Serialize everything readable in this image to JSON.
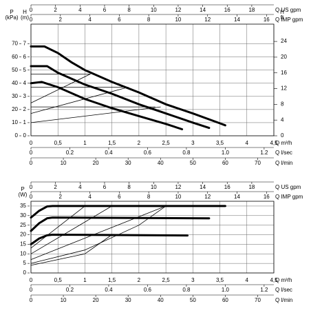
{
  "chart_data": [
    {
      "type": "line",
      "xlim": [
        0,
        4.5
      ],
      "x_label": "Q m³/h",
      "xticks": [
        0,
        {
          "value": 0.5,
          "label": "0,5"
        },
        1,
        {
          "value": 1.5,
          "label": "1,5"
        },
        2,
        {
          "value": 2.5,
          "label": "2,5"
        },
        3,
        {
          "value": 3.5,
          "label": "3,5"
        },
        4,
        {
          "value": 4.5,
          "label": "4,5"
        }
      ],
      "extra_x": [
        {
          "side": "top",
          "label": "Q US gpm",
          "lim": [
            0,
            19.8
          ],
          "ticks": [
            0,
            2,
            4,
            6,
            8,
            10,
            12,
            14,
            16,
            18
          ]
        },
        {
          "side": "top",
          "label": "Q IMP gpm",
          "lim": [
            0,
            16.5
          ],
          "ticks": [
            0,
            2,
            4,
            6,
            8,
            10,
            12,
            14,
            16
          ]
        },
        {
          "side": "bottom",
          "label": "Q l/sec",
          "lim": [
            0,
            1.25
          ],
          "ticks": [
            0,
            0.2,
            0.4,
            0.6,
            0.8,
            {
              "value": 1.0,
              "label": "1.0"
            },
            1.2
          ]
        },
        {
          "side": "bottom",
          "label": "Q l/min",
          "lim": [
            0,
            75
          ],
          "ticks": [
            0,
            10,
            20,
            30,
            40,
            50,
            60,
            70
          ]
        }
      ],
      "y_label": "P",
      "y_unit": "(kPa)",
      "ylim": [
        0,
        85
      ],
      "yticks": [
        0,
        10,
        20,
        30,
        40,
        50,
        60,
        70
      ],
      "extra_y": [
        {
          "side": "left",
          "label": "H",
          "unit": "(m)",
          "lim": [
            0,
            8.5
          ],
          "ticks": [
            0,
            1,
            2,
            3,
            4,
            5,
            6,
            7
          ]
        },
        {
          "side": "right",
          "label": "H",
          "unit": "ft",
          "lim": [
            0,
            28.4
          ],
          "ticks": [
            0,
            4,
            8,
            12,
            16,
            20,
            24
          ]
        }
      ],
      "grid": true,
      "series": [
        {
          "color": "#000000",
          "width": 3,
          "x": [
            0,
            0.25,
            0.5,
            0.75,
            1,
            1.5,
            2,
            2.5,
            3,
            3.5,
            3.6
          ],
          "values": [
            68,
            68,
            63,
            56,
            50,
            41,
            33,
            24,
            17,
            9.5,
            8
          ]
        },
        {
          "color": "#000000",
          "width": 3,
          "x": [
            0,
            0.3,
            0.5,
            1,
            1.5,
            2,
            2.5,
            3,
            3.3
          ],
          "values": [
            53,
            53,
            48,
            39,
            32,
            24,
            17,
            10,
            6
          ]
        },
        {
          "color": "#000000",
          "width": 3,
          "x": [
            0,
            0.2,
            0.5,
            1,
            1.5,
            2,
            2.5,
            2.8
          ],
          "values": [
            40,
            41,
            37,
            28,
            21,
            15,
            9,
            5
          ]
        },
        {
          "color": "#000000",
          "width": 0.8,
          "x": [
            0,
            1.1
          ],
          "values": [
            47,
            47
          ]
        },
        {
          "color": "#000000",
          "width": 0.8,
          "x": [
            0,
            1.8
          ],
          "values": [
            37,
            37
          ]
        },
        {
          "color": "#000000",
          "width": 0.8,
          "x": [
            0,
            2.3
          ],
          "values": [
            22,
            22
          ]
        },
        {
          "color": "#000000",
          "width": 0.8,
          "x": [
            0,
            2.4
          ],
          "values": [
            10,
            22
          ]
        },
        {
          "color": "#000000",
          "width": 0.8,
          "x": [
            0,
            1.8
          ],
          "values": [
            17,
            37
          ]
        },
        {
          "color": "#000000",
          "width": 0.8,
          "x": [
            0,
            1.1
          ],
          "values": [
            25,
            47
          ]
        }
      ]
    },
    {
      "type": "line",
      "xlim": [
        0,
        4.5
      ],
      "x_label": "Q m³/h",
      "xticks": [
        0,
        {
          "value": 0.5,
          "label": "0,5"
        },
        1,
        {
          "value": 1.5,
          "label": "1,5"
        },
        2,
        {
          "value": 2.5,
          "label": "2,5"
        },
        3,
        {
          "value": 3.5,
          "label": "3,5"
        },
        4,
        {
          "value": 4.5,
          "label": "4,5"
        }
      ],
      "extra_x": [
        {
          "side": "top",
          "label": "Q US gpm",
          "lim": [
            0,
            19.8
          ],
          "ticks": [
            0,
            2,
            4,
            6,
            8,
            10,
            12,
            14,
            16,
            18
          ]
        },
        {
          "side": "top",
          "label": "Q IMP gpm",
          "lim": [
            0,
            16.5
          ],
          "ticks": [
            0,
            2,
            4,
            6,
            8,
            10,
            12,
            14,
            16
          ]
        },
        {
          "side": "bottom",
          "label": "Q l/sec",
          "lim": [
            0,
            1.25
          ],
          "ticks": [
            0,
            0.2,
            0.4,
            0.6,
            0.8,
            {
              "value": 1.0,
              "label": "1.0"
            },
            1.2
          ]
        },
        {
          "side": "bottom",
          "label": "Q l/min",
          "lim": [
            0,
            75
          ],
          "ticks": [
            0,
            10,
            20,
            30,
            40,
            50,
            60,
            70
          ]
        }
      ],
      "y_label": "P",
      "y_unit": "(W)",
      "ylim": [
        0,
        37.5
      ],
      "yticks": [
        0,
        5,
        10,
        15,
        20,
        25,
        30,
        35
      ],
      "extra_y": [],
      "grid": true,
      "series": [
        {
          "color": "#000000",
          "width": 3,
          "x": [
            0,
            0.15,
            0.3,
            0.4,
            3.6
          ],
          "values": [
            29,
            32.5,
            34.8,
            35,
            35
          ]
        },
        {
          "color": "#000000",
          "width": 3,
          "x": [
            0,
            0.15,
            0.3,
            0.4,
            3.3
          ],
          "values": [
            22,
            26,
            28.6,
            29,
            28.6
          ]
        },
        {
          "color": "#000000",
          "width": 3,
          "x": [
            0,
            0.15,
            0.3,
            0.4,
            2.9
          ],
          "values": [
            15,
            18,
            19.7,
            20,
            19.6
          ]
        },
        {
          "color": "#000000",
          "width": 0.8,
          "x": [
            0,
            1
          ],
          "values": [
            13,
            35
          ]
        },
        {
          "color": "#000000",
          "width": 0.8,
          "x": [
            0,
            1.5
          ],
          "values": [
            10,
            35
          ]
        },
        {
          "color": "#000000",
          "width": 0.8,
          "x": [
            0,
            2.5
          ],
          "values": [
            7,
            35
          ]
        },
        {
          "color": "#000000",
          "width": 0.8,
          "x": [
            0,
            1,
            2,
            2.5
          ],
          "values": [
            5,
            12,
            25,
            35
          ]
        },
        {
          "color": "#000000",
          "width": 0.8,
          "x": [
            0,
            1,
            1.5
          ],
          "values": [
            4,
            10,
            20
          ]
        }
      ]
    }
  ]
}
